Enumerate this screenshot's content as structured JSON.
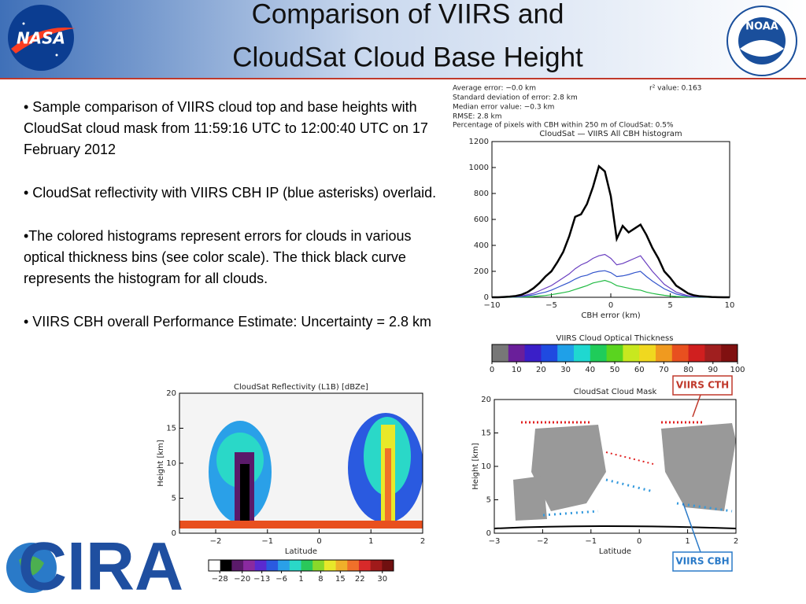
{
  "header": {
    "title_lines": [
      "Comparison of VIIRS  and",
      "CloudSat Cloud Base Height"
    ]
  },
  "logos": {
    "nasa": "NASA",
    "noaa": "NOAA",
    "cira": "CIRA"
  },
  "bullets": [
    "• Sample comparison of VIIRS cloud top and base heights with CloudSat cloud mask from 11:59:16 UTC to 12:00:40 UTC on 17 February 2012",
    "• CloudSat reflectivity with VIIRS CBH IP (blue asterisks) overlaid.",
    "•The colored histograms represent errors for clouds in various optical thickness bins (see color scale). The thick black curve represents the histogram for all clouds.",
    "•  VIIRS CBH overall Performance Estimate: Uncertainty = 2.8 km"
  ],
  "chart_data": [
    {
      "type": "line",
      "title": "CloudSat — VIIRS All CBH histogram",
      "annotations": [
        "Average error:  −0.0 km",
        "r² value: 0.163",
        "Standard deviation of error:  2.8 km",
        "Median error value:  −0.3 km",
        "RMSE:   2.8 km",
        "Percentage of pixels with CBH within 250 m of CloudSat:  0.5%"
      ],
      "x_label": "CBH error (km)",
      "xlim": [
        -10,
        10
      ],
      "xticks": [
        {
          "value": -10,
          "label": "−10"
        },
        {
          "value": -5,
          "label": "−5"
        },
        0,
        5,
        10
      ],
      "ylim": [
        0,
        1200
      ],
      "yticks": [
        0,
        200,
        400,
        600,
        800,
        1000,
        1200
      ],
      "x": [
        -10,
        -9.5,
        -9,
        -8.5,
        -8,
        -7.5,
        -7,
        -6.5,
        -6,
        -5.5,
        -5,
        -4.5,
        -4,
        -3.5,
        -3,
        -2.5,
        -2,
        -1.5,
        -1,
        -0.5,
        0,
        0.5,
        1,
        1.5,
        2,
        2.5,
        3,
        3.5,
        4,
        4.5,
        5,
        5.5,
        6,
        6.5,
        7,
        7.5,
        8,
        8.5,
        9,
        9.5,
        10
      ],
      "series": [
        {
          "color": "#000000",
          "values": [
            0,
            0,
            2,
            5,
            10,
            20,
            40,
            70,
            110,
            160,
            200,
            270,
            350,
            470,
            620,
            640,
            720,
            850,
            1010,
            970,
            780,
            450,
            550,
            500,
            530,
            560,
            480,
            380,
            300,
            200,
            150,
            90,
            60,
            30,
            15,
            8,
            5,
            2,
            1,
            0,
            0
          ]
        },
        {
          "color": "#6a3fc0",
          "values": [
            0,
            0,
            0,
            2,
            5,
            10,
            20,
            30,
            50,
            70,
            90,
            120,
            150,
            180,
            220,
            250,
            270,
            300,
            320,
            330,
            300,
            250,
            260,
            280,
            300,
            320,
            260,
            200,
            150,
            100,
            70,
            40,
            25,
            12,
            6,
            3,
            1,
            0,
            0,
            0,
            0
          ]
        },
        {
          "color": "#3355cc",
          "values": [
            0,
            0,
            0,
            1,
            3,
            6,
            12,
            18,
            30,
            40,
            55,
            75,
            95,
            115,
            140,
            160,
            170,
            190,
            200,
            205,
            190,
            160,
            165,
            175,
            190,
            200,
            160,
            125,
            95,
            65,
            45,
            25,
            15,
            8,
            4,
            2,
            1,
            0,
            0,
            0,
            0
          ]
        },
        {
          "color": "#22bb44",
          "values": [
            0,
            0,
            0,
            0,
            1,
            2,
            4,
            6,
            10,
            14,
            20,
            28,
            36,
            45,
            60,
            75,
            90,
            110,
            120,
            130,
            115,
            90,
            80,
            70,
            60,
            55,
            40,
            30,
            22,
            15,
            10,
            6,
            4,
            2,
            1,
            0,
            0,
            0,
            0,
            0,
            0
          ]
        }
      ]
    },
    {
      "type": "colorbar",
      "title": "VIIRS Cloud Optical Thickness",
      "xlim": [
        0,
        100
      ],
      "xticks": [
        0,
        10,
        20,
        30,
        40,
        50,
        60,
        70,
        80,
        90,
        100
      ],
      "colors": [
        "#777777",
        "#6a1f9a",
        "#3a1fc8",
        "#1f4ae0",
        "#1fa0e8",
        "#1fd8d0",
        "#1fcc5a",
        "#5ad41f",
        "#c8e81f",
        "#f0d81f",
        "#f09a1f",
        "#e8501f",
        "#d01f1f",
        "#a01f1f",
        "#801010"
      ]
    },
    {
      "type": "heatmap",
      "title": "CloudSat Reflectivity (L1B) [dBZe]",
      "x_label": "Latitude",
      "y_label": "Height [km]",
      "xlim": [
        -2.7,
        2
      ],
      "xticks": [
        {
          "value": -2,
          "label": "−2"
        },
        {
          "value": -1,
          "label": "−1"
        },
        0,
        1,
        2
      ],
      "ylim": [
        0,
        20
      ],
      "yticks": [
        0,
        5,
        10,
        15,
        20
      ],
      "colorbar": {
        "xlim": [
          -32,
          34
        ],
        "xticks": [
          {
            "value": -28,
            "label": "−28"
          },
          {
            "value": -20,
            "label": "−20"
          },
          {
            "value": -13,
            "label": "−13"
          },
          {
            "value": -6,
            "label": "−6"
          },
          1,
          8,
          15,
          22,
          30
        ],
        "colors": [
          "#ffffff",
          "#000000",
          "#5a1a6a",
          "#8a2aa0",
          "#5a2ad0",
          "#2a5ae0",
          "#2aa0e8",
          "#2ad8c8",
          "#2ac85a",
          "#8ad82a",
          "#e8e82a",
          "#f0b02a",
          "#f0702a",
          "#d82a2a",
          "#a01a1a",
          "#701010"
        ]
      }
    },
    {
      "type": "scatter",
      "title": "CloudSat Cloud Mask",
      "x_label": "Latitude",
      "y_label": "Height [km]",
      "xlim": [
        -3,
        2
      ],
      "xticks": [
        {
          "value": -3,
          "label": "−3"
        },
        {
          "value": -2,
          "label": "−2"
        },
        {
          "value": -1,
          "label": "−1"
        },
        0,
        1,
        2
      ],
      "ylim": [
        0,
        20
      ],
      "yticks": [
        0,
        5,
        10,
        15,
        20
      ],
      "annotations": [
        "VIIRS CTH",
        "VIIRS CBH"
      ]
    }
  ]
}
